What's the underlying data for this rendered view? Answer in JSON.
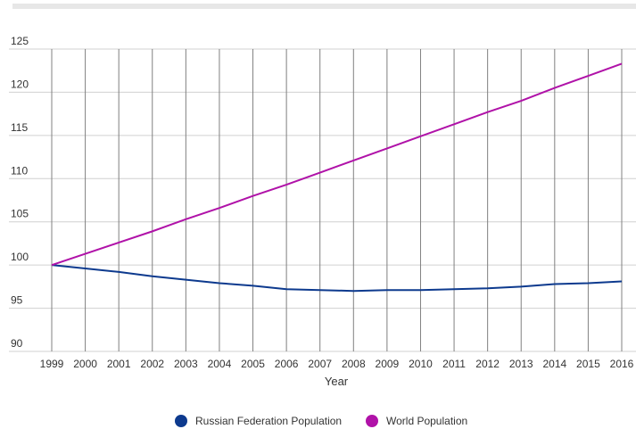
{
  "chart_data": {
    "type": "line",
    "xlabel": "Year",
    "ylabel": "",
    "x": [
      1999,
      2000,
      2001,
      2002,
      2003,
      2004,
      2005,
      2006,
      2007,
      2008,
      2009,
      2010,
      2011,
      2012,
      2013,
      2014,
      2015,
      2016
    ],
    "ylim": [
      90,
      125
    ],
    "yticks": [
      90,
      95,
      100,
      105,
      110,
      115,
      120,
      125
    ],
    "grid": true,
    "legend_position": "bottom",
    "series": [
      {
        "name": "Russian Federation Population",
        "color": "#0d3a8e",
        "values": [
          100,
          99.6,
          99.2,
          98.7,
          98.3,
          97.9,
          97.6,
          97.2,
          97.1,
          97.0,
          97.1,
          97.1,
          97.2,
          97.3,
          97.5,
          97.8,
          97.9,
          98.1
        ]
      },
      {
        "name": "World Population",
        "color": "#b012a8",
        "values": [
          100,
          101.3,
          102.6,
          103.9,
          105.3,
          106.6,
          108.0,
          109.3,
          110.7,
          112.1,
          113.5,
          114.9,
          116.3,
          117.7,
          119.0,
          120.5,
          121.9,
          123.3
        ]
      }
    ]
  }
}
